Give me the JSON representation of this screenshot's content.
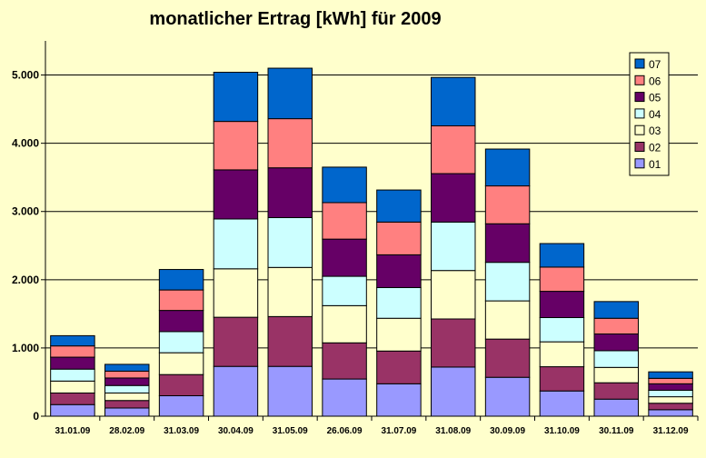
{
  "chart_data": {
    "type": "bar",
    "stacked": true,
    "title": "monatlicher Ertrag [kWh] für 2009",
    "xlabel": "",
    "ylabel": "",
    "ylim": [
      0,
      5500
    ],
    "yticks": [
      0,
      1000,
      2000,
      3000,
      4000,
      5000
    ],
    "ytick_labels": [
      "0",
      "1.000",
      "2.000",
      "3.000",
      "4.000",
      "5.000"
    ],
    "grid": true,
    "legend_position": "top-right",
    "categories": [
      "31.01.09",
      "28.02.09",
      "31.03.09",
      "30.04.09",
      "31.05.09",
      "26.06.09",
      "31.07.09",
      "31.08.09",
      "30.09.09",
      "31.10.09",
      "30.11.09",
      "31.12.09"
    ],
    "series": [
      {
        "name": "01",
        "color": "#9999ff",
        "values": [
          170,
          120,
          300,
          730,
          730,
          545,
          475,
          720,
          570,
          370,
          250,
          95
        ]
      },
      {
        "name": "02",
        "color": "#993366",
        "values": [
          170,
          110,
          310,
          720,
          730,
          530,
          480,
          705,
          560,
          355,
          240,
          95
        ]
      },
      {
        "name": "03",
        "color": "#ffffcc",
        "values": [
          175,
          110,
          320,
          710,
          720,
          545,
          480,
          710,
          560,
          365,
          225,
          95
        ]
      },
      {
        "name": "04",
        "color": "#ccffff",
        "values": [
          175,
          110,
          310,
          730,
          730,
          430,
          450,
          710,
          565,
          355,
          245,
          95
        ]
      },
      {
        "name": "05",
        "color": "#660066",
        "values": [
          175,
          110,
          310,
          720,
          730,
          545,
          480,
          710,
          565,
          385,
          245,
          95
        ]
      },
      {
        "name": "06",
        "color": "#ff8080",
        "values": [
          165,
          100,
          300,
          710,
          720,
          535,
          480,
          700,
          555,
          355,
          230,
          80
        ]
      },
      {
        "name": "07",
        "color": "#0066cc",
        "values": [
          150,
          100,
          300,
          720,
          740,
          520,
          470,
          710,
          540,
          345,
          245,
          95
        ]
      }
    ]
  }
}
